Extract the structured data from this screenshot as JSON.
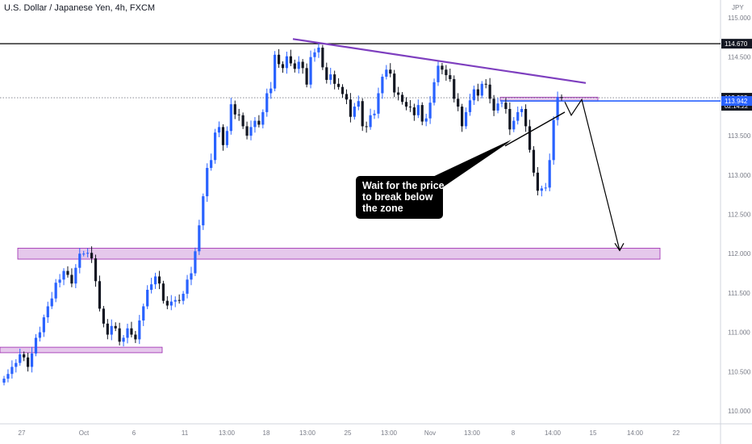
{
  "header": {
    "title": "U.S. Dollar / Japanese Yen, 4h, FXCM",
    "currency": "JPY"
  },
  "annotation": {
    "lines": [
      "Wait for the price",
      "to break below",
      "the zone"
    ]
  },
  "price_tags": [
    {
      "label": "114.670",
      "price": 114.67,
      "style": "dark"
    },
    {
      "label": "113.983",
      "sub": "02:14:22",
      "price": 113.983,
      "style": "dark"
    },
    {
      "label": "113.942",
      "price": 113.942,
      "style": "blue"
    }
  ],
  "colors": {
    "up": "#2962ff",
    "down": "#131722",
    "zone_fill": "#e1bee7",
    "zone_border": "#9c27b0",
    "trendline": "#7e3fbf",
    "blue_line": "#2962ff",
    "axis_text": "#787b86",
    "grid": "#f0f3fa"
  },
  "chart_data": {
    "type": "candlestick",
    "title": "U.S. Dollar / Japanese Yen, 4h, FXCM",
    "y_axis": {
      "ticks": [
        "115.000",
        "114.500",
        "114.000",
        "113.500",
        "113.000",
        "112.500",
        "112.000",
        "111.500",
        "111.000",
        "110.500",
        "110.000"
      ],
      "range": [
        109.8,
        115.1
      ],
      "unit": "JPY"
    },
    "x_axis": {
      "ticks": [
        "27",
        "Oct",
        "6",
        "11",
        "13:00",
        "18",
        "13:00",
        "25",
        "13:00",
        "Nov",
        "13:00",
        "8",
        "14:00",
        "15",
        "14:00",
        "22"
      ]
    },
    "levels": [
      {
        "name": "resistance",
        "price": 114.67
      },
      {
        "name": "last price",
        "price": 113.983
      },
      {
        "name": "current price",
        "price": 113.942
      }
    ],
    "zones": [
      {
        "top": 112.07,
        "bottom": 111.93
      },
      {
        "top": 110.81,
        "bottom": 110.74
      },
      {
        "top": 113.99,
        "bottom": 113.94
      }
    ],
    "trendline_upper": {
      "from": 114.73,
      "to": 114.17
    },
    "trendline_lower": {
      "from": 113.37,
      "to": 113.8
    },
    "projection": [
      113.93,
      113.76,
      113.96,
      112.04
    ],
    "close_series": [
      110.41,
      110.47,
      110.56,
      110.61,
      110.72,
      110.68,
      110.56,
      110.73,
      110.93,
      111.0,
      111.19,
      111.33,
      111.43,
      111.63,
      111.67,
      111.78,
      111.73,
      111.62,
      111.82,
      112.0,
      112.0,
      112.01,
      111.94,
      111.65,
      111.3,
      111.11,
      110.97,
      111.08,
      111.05,
      110.88,
      110.93,
      111.05,
      110.97,
      110.91,
      111.15,
      111.33,
      111.54,
      111.61,
      111.71,
      111.62,
      111.4,
      111.34,
      111.39,
      111.41,
      111.4,
      111.49,
      111.67,
      111.75,
      112.03,
      112.36,
      112.73,
      113.09,
      113.19,
      113.54,
      113.61,
      113.38,
      113.56,
      113.9,
      113.77,
      113.76,
      113.62,
      113.5,
      113.61,
      113.69,
      113.64,
      113.8,
      114.04,
      114.1,
      114.53,
      114.41,
      114.36,
      114.51,
      114.42,
      114.35,
      114.44,
      114.36,
      114.15,
      114.5,
      114.56,
      114.62,
      114.37,
      114.21,
      114.28,
      114.16,
      114.12,
      114.03,
      113.96,
      113.74,
      113.87,
      113.94,
      113.62,
      113.61,
      113.76,
      113.78,
      114.04,
      114.25,
      114.34,
      114.29,
      114.05,
      114.02,
      113.93,
      113.87,
      113.86,
      113.76,
      113.89,
      113.68,
      113.72,
      113.92,
      114.18,
      114.39,
      114.34,
      114.27,
      114.22,
      113.97,
      113.87,
      113.62,
      113.8,
      113.95,
      114.09,
      114.01,
      114.16,
      114.15,
      113.97,
      113.82,
      113.91,
      113.92,
      113.84,
      113.58,
      113.69,
      113.8,
      113.84,
      113.62,
      113.32,
      113.03,
      112.8,
      112.83,
      112.84,
      113.19,
      113.7,
      113.99,
      113.98
    ]
  }
}
